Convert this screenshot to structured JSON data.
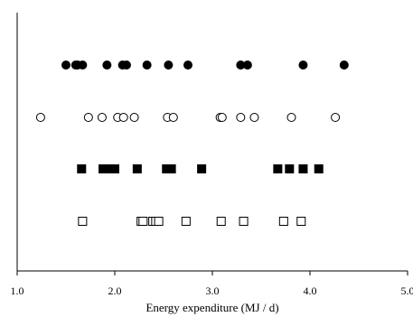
{
  "chart_data": {
    "type": "scatter",
    "title": "",
    "xlabel": "Energy expenditure (MJ / d)",
    "ylabel": "",
    "xlim": [
      1.0,
      5.0
    ],
    "xticks": [
      "1.0",
      "2.0",
      "3.0",
      "4.0",
      "5.0"
    ],
    "grid": false,
    "legend": "none",
    "series": [
      {
        "marker": "filled-circle",
        "color": "#000000",
        "x": [
          1.5,
          1.6,
          1.62,
          1.67,
          1.92,
          2.08,
          2.12,
          2.33,
          2.55,
          2.75,
          3.29,
          3.36,
          3.93,
          4.35
        ]
      },
      {
        "marker": "open-circle",
        "color": "#000000",
        "x": [
          1.24,
          1.73,
          1.87,
          2.03,
          2.09,
          2.2,
          2.54,
          2.6,
          3.08,
          3.1,
          3.29,
          3.43,
          3.81,
          4.26
        ]
      },
      {
        "marker": "filled-square",
        "color": "#000000",
        "x": [
          1.66,
          1.88,
          1.96,
          2.0,
          2.23,
          2.53,
          2.58,
          2.89,
          3.67,
          3.79,
          3.93,
          4.09
        ]
      },
      {
        "marker": "open-square",
        "color": "#000000",
        "x": [
          1.67,
          2.27,
          2.29,
          2.39,
          2.42,
          2.45,
          2.73,
          3.09,
          3.32,
          3.73,
          3.91
        ]
      }
    ]
  }
}
